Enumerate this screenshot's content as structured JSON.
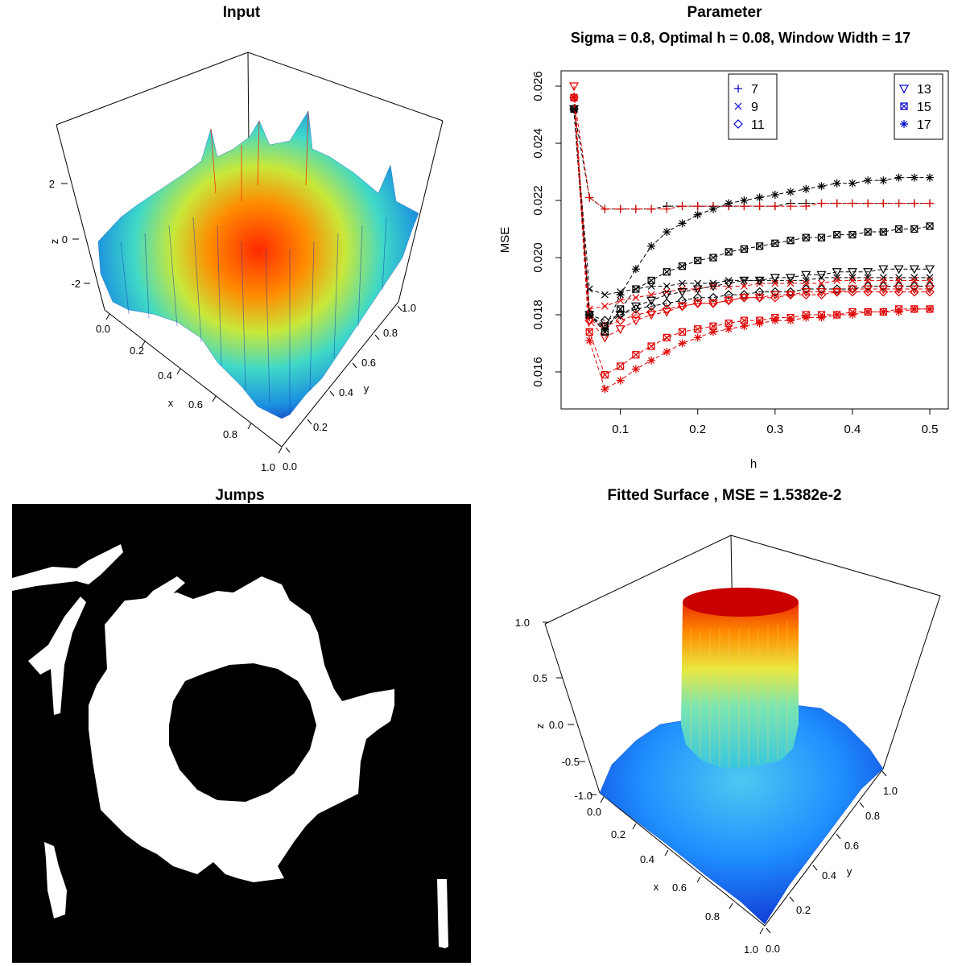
{
  "panels": {
    "input": {
      "title": "Input",
      "axes": {
        "z_label": "z",
        "x_label": "x",
        "y_label": "y",
        "z_ticks": [
          "2",
          "0",
          "-2"
        ],
        "x_ticks": [
          "0.0",
          "0.2",
          "0.4",
          "0.6",
          "0.8",
          "1.0"
        ],
        "y_ticks": [
          "0.0",
          "0.2",
          "0.4",
          "0.6",
          "0.8",
          "1.0"
        ]
      }
    },
    "jumps": {
      "title": "Jumps"
    },
    "fitted": {
      "title": "Fitted Surface , MSE = 1.5382e-2",
      "axes": {
        "z_label": "z",
        "x_label": "x",
        "y_label": "y",
        "z_ticks": [
          "1.0",
          "0.5",
          "0.0",
          "-0.5",
          "-1.0"
        ],
        "x_ticks": [
          "0.0",
          "0.2",
          "0.4",
          "0.6",
          "0.8",
          "1.0"
        ],
        "y_ticks": [
          "0.0",
          "0.2",
          "0.4",
          "0.6",
          "0.8",
          "1.0"
        ]
      }
    }
  },
  "chart_data": {
    "type": "scatter",
    "title": "Parameter",
    "subtitle": "Sigma = 0.8, Optimal h = 0.08, Window Width = 17",
    "xlabel": "h",
    "ylabel": "MSE",
    "xlim": [
      0.04,
      0.5
    ],
    "ylim": [
      0.0152,
      0.0262
    ],
    "x_ticks": [
      0.1,
      0.2,
      0.3,
      0.4,
      0.5
    ],
    "x_tick_labels": [
      "0.1",
      "0.2",
      "0.3",
      "0.4",
      "0.5"
    ],
    "y_ticks": [
      0.016,
      0.018,
      0.02,
      0.022,
      0.024,
      0.026
    ],
    "y_tick_labels": [
      "0.016",
      "0.018",
      "0.020",
      "0.022",
      "0.024",
      "0.026"
    ],
    "legend_left": {
      "position": "top-center",
      "entries": [
        {
          "label": "7",
          "symbol": "plus"
        },
        {
          "label": "9",
          "symbol": "cross"
        },
        {
          "label": "11",
          "symbol": "diamond"
        }
      ]
    },
    "legend_right": {
      "position": "top-right",
      "entries": [
        {
          "label": "13",
          "symbol": "triangle"
        },
        {
          "label": "15",
          "symbol": "boxcross"
        },
        {
          "label": "17",
          "symbol": "asterisk"
        }
      ]
    },
    "legend_color": "#0000cc",
    "series_colors": [
      "#000000",
      "#e00000"
    ],
    "x": [
      0.04,
      0.06,
      0.08,
      0.1,
      0.12,
      0.14,
      0.16,
      0.18,
      0.2,
      0.22,
      0.24,
      0.26,
      0.28,
      0.3,
      0.32,
      0.34,
      0.36,
      0.38,
      0.4,
      0.42,
      0.44,
      0.46,
      0.48,
      0.5
    ],
    "series": [
      {
        "name": "7",
        "symbol": "plus",
        "color": "#000000",
        "values": [
          0.0252,
          0.0221,
          0.0217,
          0.0217,
          0.0217,
          0.0217,
          0.0218,
          0.0218,
          0.0218,
          0.0218,
          0.0218,
          0.0218,
          0.0218,
          0.0218,
          0.0219,
          0.0219,
          0.0219,
          0.0219,
          0.0219,
          0.0219,
          0.0219,
          0.0219,
          0.0219,
          0.0219
        ]
      },
      {
        "name": "7",
        "symbol": "plus",
        "color": "#e00000",
        "values": [
          0.0256,
          0.0221,
          0.0217,
          0.0217,
          0.0217,
          0.0217,
          0.0217,
          0.0218,
          0.0218,
          0.0218,
          0.0218,
          0.0218,
          0.0218,
          0.0218,
          0.0218,
          0.0218,
          0.0219,
          0.0219,
          0.0219,
          0.0219,
          0.0219,
          0.0219,
          0.0219,
          0.0219
        ]
      },
      {
        "name": "9",
        "symbol": "cross",
        "color": "#000000",
        "values": [
          0.0252,
          0.0189,
          0.0187,
          0.0188,
          0.0189,
          0.019,
          0.019,
          0.0191,
          0.0191,
          0.0191,
          0.0192,
          0.0192,
          0.0192,
          0.0192,
          0.0192,
          0.0192,
          0.0193,
          0.0193,
          0.0193,
          0.0193,
          0.0193,
          0.0193,
          0.0193,
          0.0193
        ]
      },
      {
        "name": "9",
        "symbol": "cross",
        "color": "#e00000",
        "values": [
          0.0256,
          0.0182,
          0.0183,
          0.0185,
          0.0186,
          0.0187,
          0.0188,
          0.0189,
          0.0189,
          0.019,
          0.019,
          0.019,
          0.0191,
          0.0191,
          0.0191,
          0.0191,
          0.0191,
          0.0192,
          0.0192,
          0.0192,
          0.0192,
          0.0192,
          0.0192,
          0.0192
        ]
      },
      {
        "name": "11",
        "symbol": "diamond",
        "color": "#000000",
        "values": [
          0.0252,
          0.018,
          0.0178,
          0.018,
          0.0182,
          0.0183,
          0.0184,
          0.0185,
          0.0186,
          0.0186,
          0.0187,
          0.0187,
          0.0188,
          0.0188,
          0.0188,
          0.0189,
          0.0189,
          0.0189,
          0.0189,
          0.019,
          0.019,
          0.019,
          0.019,
          0.019
        ]
      },
      {
        "name": "11",
        "symbol": "diamond",
        "color": "#e00000",
        "values": [
          0.0256,
          0.0178,
          0.0176,
          0.0178,
          0.018,
          0.0181,
          0.0182,
          0.0183,
          0.0184,
          0.0184,
          0.0185,
          0.0186,
          0.0186,
          0.0186,
          0.0187,
          0.0187,
          0.0187,
          0.0188,
          0.0188,
          0.0188,
          0.0188,
          0.0188,
          0.0188,
          0.0188
        ]
      },
      {
        "name": "13",
        "symbol": "triangle",
        "color": "#000000",
        "values": [
          0.0252,
          0.018,
          0.0176,
          0.018,
          0.0183,
          0.0185,
          0.0187,
          0.0188,
          0.0189,
          0.019,
          0.0191,
          0.0192,
          0.0192,
          0.0193,
          0.0193,
          0.0194,
          0.0194,
          0.0195,
          0.0195,
          0.0195,
          0.0196,
          0.0196,
          0.0196,
          0.0196
        ]
      },
      {
        "name": "13",
        "symbol": "triangle",
        "color": "#e00000",
        "values": [
          0.026,
          0.0178,
          0.0172,
          0.0175,
          0.0178,
          0.018,
          0.0181,
          0.0183,
          0.0184,
          0.0184,
          0.0185,
          0.0186,
          0.0186,
          0.0187,
          0.0187,
          0.0188,
          0.0188,
          0.0188,
          0.0189,
          0.0189,
          0.0189,
          0.0189,
          0.0189,
          0.0189
        ]
      },
      {
        "name": "15",
        "symbol": "boxcross",
        "color": "#000000",
        "values": [
          0.0252,
          0.018,
          0.0174,
          0.0182,
          0.0189,
          0.0192,
          0.0195,
          0.0197,
          0.0199,
          0.02,
          0.0202,
          0.0203,
          0.0204,
          0.0205,
          0.0206,
          0.0207,
          0.0207,
          0.0208,
          0.0208,
          0.0209,
          0.0209,
          0.021,
          0.021,
          0.0211
        ]
      },
      {
        "name": "15",
        "symbol": "boxcross",
        "color": "#e00000",
        "values": [
          0.0256,
          0.0174,
          0.0159,
          0.0162,
          0.0166,
          0.0169,
          0.0172,
          0.0174,
          0.0175,
          0.0176,
          0.0177,
          0.0178,
          0.0178,
          0.0179,
          0.0179,
          0.018,
          0.018,
          0.018,
          0.0181,
          0.0181,
          0.0181,
          0.0182,
          0.0182,
          0.0182
        ]
      },
      {
        "name": "17",
        "symbol": "asterisk",
        "color": "#000000",
        "values": [
          0.0252,
          0.018,
          0.0175,
          0.0187,
          0.0196,
          0.0204,
          0.0209,
          0.0212,
          0.0215,
          0.0217,
          0.0219,
          0.022,
          0.0221,
          0.0222,
          0.0223,
          0.0224,
          0.0225,
          0.0226,
          0.0226,
          0.0227,
          0.0227,
          0.0228,
          0.0228,
          0.0228
        ]
      },
      {
        "name": "17",
        "symbol": "asterisk",
        "color": "#e00000",
        "values": [
          0.0256,
          0.0171,
          0.0154,
          0.0157,
          0.0161,
          0.0164,
          0.0167,
          0.017,
          0.0172,
          0.0174,
          0.0175,
          0.0176,
          0.0177,
          0.0178,
          0.0178,
          0.0179,
          0.0179,
          0.018,
          0.018,
          0.0181,
          0.0181,
          0.0181,
          0.0182,
          0.0182
        ]
      }
    ]
  }
}
